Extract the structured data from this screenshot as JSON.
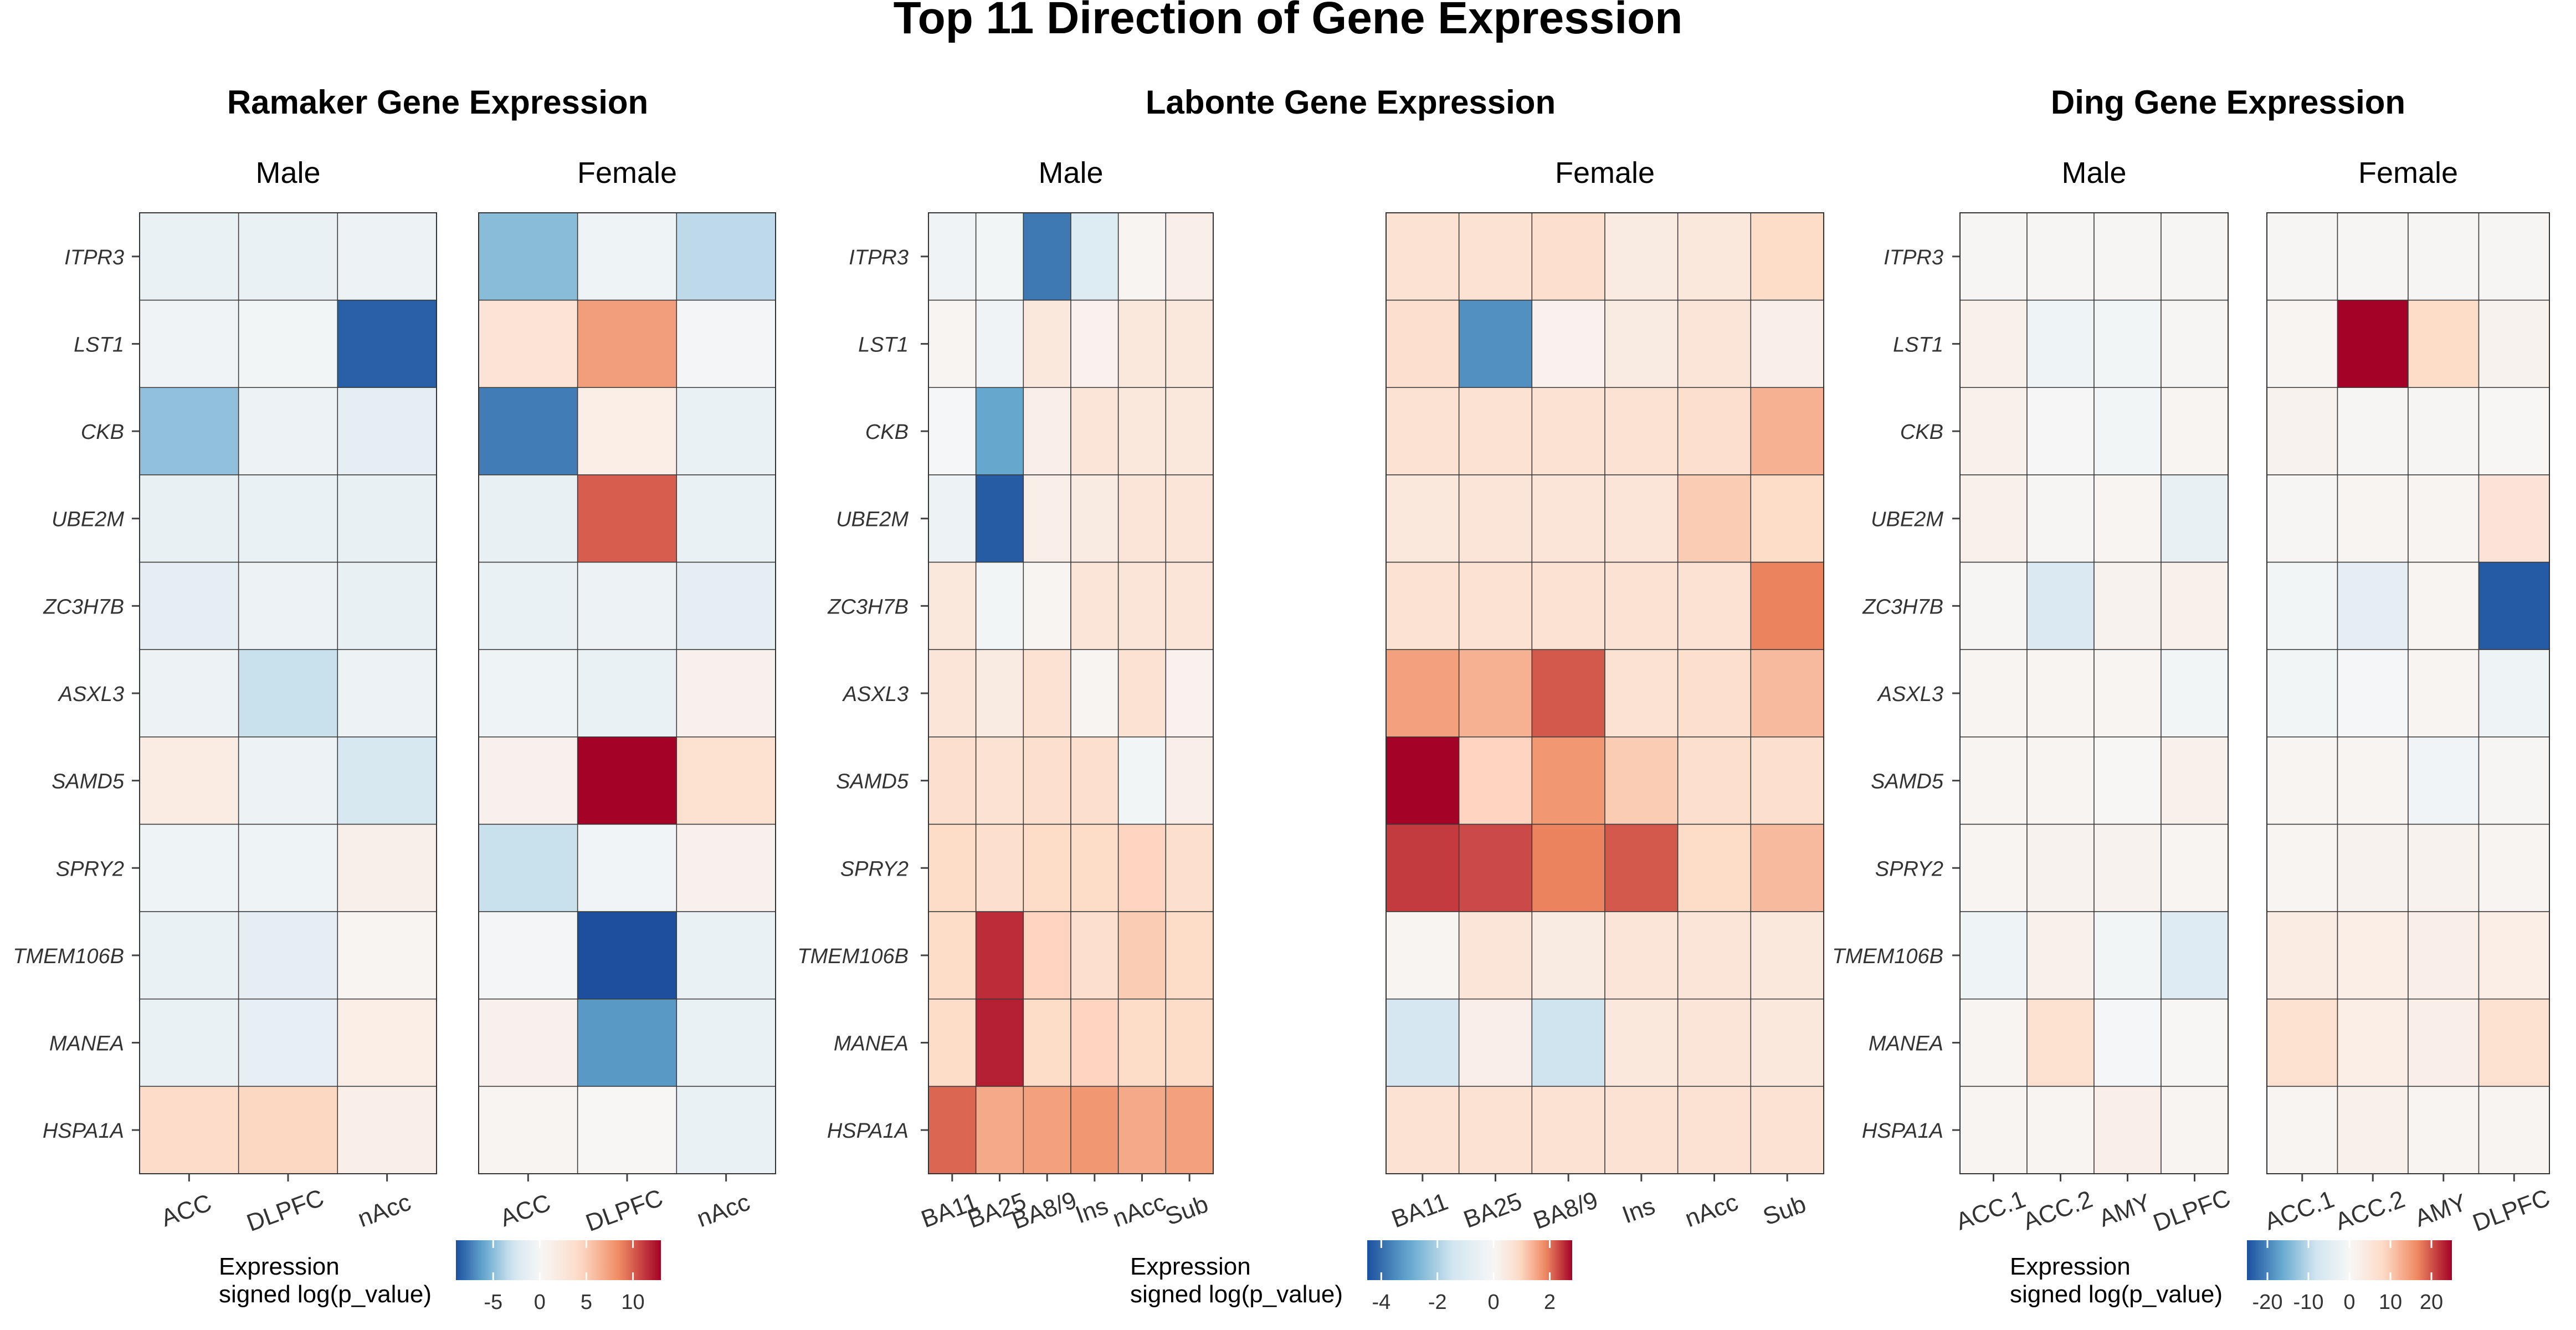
{
  "title": "Top 11 Direction of Gene Expression",
  "genes": [
    "ITPR3",
    "LST1",
    "CKB",
    "UBE2M",
    "ZC3H7B",
    "ASXL3",
    "SAMD5",
    "SPRY2",
    "TMEM106B",
    "MANEA",
    "HSPA1A"
  ],
  "chart_data": [
    {
      "type": "heatmap",
      "title": "Ramaker Gene Expression",
      "legend_title": [
        "Expression",
        "signed log(p_value)"
      ],
      "legend_range": [
        -9,
        13
      ],
      "legend_ticks": [
        -5,
        0,
        5,
        10
      ],
      "panels": [
        {
          "name": "Male",
          "columns": [
            "ACC",
            "DLPFC",
            "nAcc"
          ],
          "values": [
            [
              -1.0,
              -1.0,
              -0.8
            ],
            [
              -0.6,
              -0.4,
              -8.5
            ],
            [
              -4.8,
              -0.8,
              -1.5
            ],
            [
              -1.2,
              -1.0,
              -1.2
            ],
            [
              -1.5,
              -0.8,
              -1.2
            ],
            [
              -0.8,
              -3.2,
              -0.8
            ],
            [
              1.8,
              -0.8,
              -2.5
            ],
            [
              -0.7,
              -0.7,
              1.2
            ],
            [
              -1.0,
              -1.5,
              0.5
            ],
            [
              -1.0,
              -1.3,
              1.5
            ],
            [
              4.0,
              4.5,
              1.3
            ]
          ]
        },
        {
          "name": "Female",
          "columns": [
            "ACC",
            "DLPFC",
            "nAcc"
          ],
          "values": [
            [
              -5.0,
              -0.7,
              -3.5
            ],
            [
              3.0,
              7.5,
              -0.3
            ],
            [
              -7.5,
              1.5,
              -1.0
            ],
            [
              -1.2,
              10.0,
              -1.0
            ],
            [
              -1.0,
              -0.8,
              -1.5
            ],
            [
              -0.7,
              -1.0,
              1.0
            ],
            [
              1.0,
              13.0,
              3.5
            ],
            [
              -3.2,
              -0.5,
              1.0
            ],
            [
              -0.3,
              -9.0,
              -1.0
            ],
            [
              1.0,
              -6.5,
              -1.0
            ],
            [
              0.5,
              0.2,
              -1.0
            ]
          ]
        }
      ]
    },
    {
      "type": "heatmap",
      "title": "Labonte Gene Expression",
      "legend_title": [
        "Expression",
        "signed log(p_value)"
      ],
      "legend_range": [
        -4.5,
        2.8
      ],
      "legend_ticks": [
        -4,
        -2,
        0,
        2
      ],
      "panels": [
        {
          "name": "Male",
          "columns": [
            "BA11",
            "BA25",
            "BA8/9",
            "Ins",
            "nAcc",
            "Sub"
          ],
          "values": [
            [
              -0.3,
              -0.2,
              -3.8,
              -1.0,
              0.1,
              0.3
            ],
            [
              0.1,
              -0.3,
              0.5,
              0.2,
              0.5,
              0.5
            ],
            [
              -0.1,
              -3.0,
              0.3,
              0.6,
              0.5,
              0.5
            ],
            [
              -0.4,
              -4.3,
              0.3,
              0.4,
              0.6,
              0.6
            ],
            [
              0.5,
              -0.2,
              0.1,
              0.6,
              0.6,
              0.6
            ],
            [
              0.6,
              0.4,
              0.7,
              0.1,
              0.7,
              0.2
            ],
            [
              0.8,
              0.7,
              0.8,
              0.8,
              -0.2,
              0.3
            ],
            [
              0.9,
              0.8,
              0.9,
              0.9,
              1.0,
              0.8
            ],
            [
              0.9,
              2.5,
              1.0,
              0.8,
              1.1,
              0.9
            ],
            [
              0.9,
              2.6,
              0.9,
              1.0,
              0.9,
              0.9
            ],
            [
              2.1,
              1.5,
              1.6,
              1.7,
              1.5,
              1.6
            ]
          ]
        },
        {
          "name": "Female",
          "columns": [
            "BA11",
            "BA25",
            "BA8/9",
            "Ins",
            "nAcc",
            "Sub"
          ],
          "values": [
            [
              0.7,
              0.7,
              0.8,
              0.4,
              0.5,
              0.9
            ],
            [
              0.8,
              -3.4,
              0.2,
              0.4,
              0.6,
              0.3
            ],
            [
              0.7,
              0.7,
              0.7,
              0.7,
              0.8,
              1.4
            ],
            [
              0.5,
              0.6,
              0.6,
              0.6,
              1.1,
              0.9
            ],
            [
              0.7,
              0.7,
              0.7,
              0.7,
              0.7,
              1.9
            ],
            [
              1.6,
              1.4,
              2.2,
              0.7,
              0.8,
              1.3
            ],
            [
              2.8,
              1.0,
              1.7,
              1.1,
              0.8,
              0.8
            ],
            [
              2.4,
              2.3,
              1.9,
              2.2,
              0.9,
              1.3
            ],
            [
              0.1,
              0.6,
              0.4,
              0.6,
              0.6,
              0.5
            ],
            [
              -1.3,
              0.3,
              -1.5,
              0.5,
              0.6,
              0.5
            ],
            [
              0.7,
              0.7,
              0.7,
              0.7,
              0.7,
              0.7
            ]
          ]
        }
      ]
    },
    {
      "type": "heatmap",
      "title": "Ding Gene Expression",
      "legend_title": [
        "Expression",
        "signed log(p_value)"
      ],
      "legend_range": [
        -25,
        25
      ],
      "legend_ticks": [
        -20,
        -10,
        0,
        10,
        20
      ],
      "panels": [
        {
          "name": "Male",
          "columns": [
            "ACC.1",
            "ACC.2",
            "AMY",
            "DLPFC"
          ],
          "values": [
            [
              0.5,
              0.5,
              0.5,
              0.5
            ],
            [
              2.0,
              -2.0,
              -1.0,
              0.5
            ],
            [
              2.0,
              0.2,
              -1.0,
              1.0
            ],
            [
              2.0,
              0.5,
              1.0,
              -3.0
            ],
            [
              0.5,
              -6.0,
              1.5,
              2.0
            ],
            [
              1.0,
              1.0,
              1.0,
              -1.0
            ],
            [
              1.0,
              1.0,
              0.3,
              2.0
            ],
            [
              1.0,
              1.5,
              1.5,
              1.0
            ],
            [
              -2.0,
              2.0,
              -1.0,
              -5.5
            ],
            [
              1.0,
              6.5,
              -0.5,
              0.3
            ],
            [
              1.0,
              1.0,
              2.5,
              1.0
            ]
          ]
        },
        {
          "name": "Female",
          "columns": [
            "ACC.1",
            "ACC.2",
            "AMY",
            "DLPFC"
          ],
          "values": [
            [
              0.5,
              0.5,
              0.5,
              0.5
            ],
            [
              1.0,
              25.0,
              8.0,
              1.5
            ],
            [
              1.5,
              0.5,
              0.5,
              0.3
            ],
            [
              0.5,
              1.0,
              1.0,
              5.5
            ],
            [
              -1.0,
              -4.0,
              1.0,
              -24.0
            ],
            [
              -1.0,
              -0.5,
              1.0,
              -2.0
            ],
            [
              1.0,
              1.0,
              -1.5,
              0.5
            ],
            [
              1.0,
              1.5,
              1.5,
              1.0
            ],
            [
              3.5,
              3.0,
              2.5,
              3.0
            ],
            [
              6.5,
              3.0,
              2.5,
              6.5
            ],
            [
              1.0,
              2.0,
              1.0,
              1.0
            ]
          ]
        }
      ]
    }
  ]
}
